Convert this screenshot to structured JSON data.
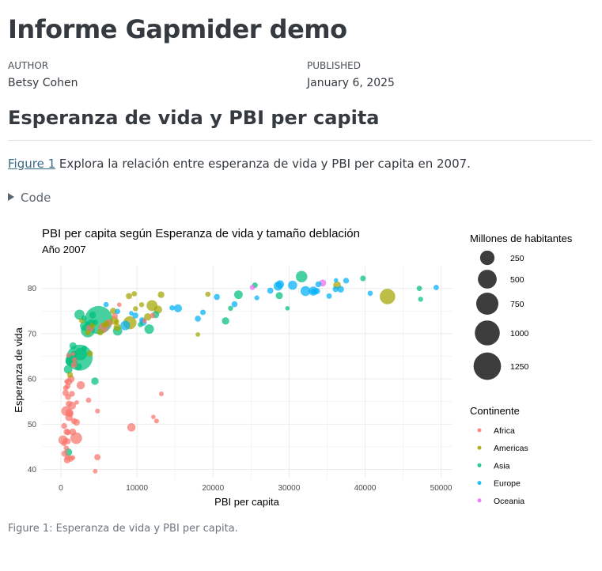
{
  "page": {
    "title": "Informe Gapmider demo",
    "author_label": "AUTHOR",
    "author": "Betsy Cohen",
    "published_label": "PUBLISHED",
    "published": "January 6, 2025",
    "section_title": "Esperanza de vida y PBI per capita",
    "para_link": "Figure 1",
    "para_text": " Explora la relación entre esperanza de vida y PBI per capita en 2007.",
    "code_label": "Code",
    "caption": "Figure 1: Esperanza de vida y PBI per capita."
  },
  "colors": {
    "Africa": "#f8766d",
    "Americas": "#a3a500",
    "Asia": "#00bf7d",
    "Europe": "#00b0f6",
    "Oceania": "#e76bf3",
    "size_legend": "#3d3d3d",
    "grid": "#ebebeb"
  },
  "chart_data": {
    "type": "scatter",
    "title": "PBI per capita según Esperanza de vida y tamaño deblación",
    "subtitle": "Año 2007",
    "xlabel": "PBI per capita",
    "ylabel": "Esperanza de vida",
    "xlim": [
      -2500,
      51500
    ],
    "ylim": [
      38,
      85
    ],
    "xticks": [
      0,
      10000,
      20000,
      30000,
      40000,
      50000
    ],
    "yticks": [
      40,
      50,
      60,
      70,
      80
    ],
    "grid": true,
    "size_legend": {
      "title": "Millones de habitantes",
      "values": [
        250,
        500,
        750,
        1000,
        1250
      ]
    },
    "color_legend": {
      "title": "Continente",
      "items": [
        "Africa",
        "Americas",
        "Asia",
        "Europe",
        "Oceania"
      ]
    },
    "series": [
      {
        "name": "Africa",
        "points": [
          [
            6223,
            72.3,
            33
          ],
          [
            4797,
            42.7,
            12
          ],
          [
            1441,
            56.7,
            8
          ],
          [
            12570,
            50.7,
            2
          ],
          [
            1217,
            52.3,
            14
          ],
          [
            430,
            49.6,
            8
          ],
          [
            2042,
            50.4,
            18
          ],
          [
            706,
            44.7,
            4
          ],
          [
            1704,
            50.7,
            10
          ],
          [
            986,
            65.2,
            1
          ],
          [
            278,
            46.5,
            65
          ],
          [
            3633,
            55.3,
            4
          ],
          [
            1545,
            48.3,
            18
          ],
          [
            2082,
            54.8,
            0.5
          ],
          [
            5581,
            71.3,
            80
          ],
          [
            12154,
            51.6,
            0.6
          ],
          [
            641,
            58.0,
            5
          ],
          [
            691,
            52.9,
            76
          ],
          [
            13206,
            56.7,
            1.5
          ],
          [
            753,
            59.4,
            1.7
          ],
          [
            1327,
            60.0,
            23
          ],
          [
            943,
            56.0,
            10
          ],
          [
            579,
            46.4,
            1.5
          ],
          [
            1463,
            54.1,
            35
          ],
          [
            1569,
            42.6,
            2
          ],
          [
            415,
            45.7,
            3.2
          ],
          [
            12057,
            74.0,
            6
          ],
          [
            1045,
            59.4,
            19
          ],
          [
            759,
            48.3,
            13
          ],
          [
            1043,
            54.5,
            12
          ],
          [
            1803,
            64.2,
            3.3
          ],
          [
            10957,
            72.8,
            1.3
          ],
          [
            3820,
            71.2,
            34
          ],
          [
            824,
            42.1,
            20
          ],
          [
            4811,
            52.9,
            2
          ],
          [
            620,
            56.9,
            12
          ],
          [
            2014,
            46.9,
            135
          ],
          [
            7670,
            76.4,
            0.8
          ],
          [
            882,
            46.2,
            9
          ],
          [
            1598,
            65.5,
            0.2
          ],
          [
            1712,
            63.1,
            12
          ],
          [
            862,
            42.6,
            6
          ],
          [
            926,
            48.2,
            9
          ],
          [
            9270,
            49.3,
            44
          ],
          [
            2602,
            58.6,
            42
          ],
          [
            4513,
            39.6,
            1.1
          ],
          [
            1107,
            52.5,
            38
          ],
          [
            883,
            58.4,
            6
          ],
          [
            7093,
            73.9,
            10
          ],
          [
            1056,
            51.5,
            29
          ],
          [
            1271,
            42.4,
            11
          ],
          [
            470,
            43.5,
            12
          ]
        ]
      },
      {
        "name": "Americas",
        "points": [
          [
            12779,
            75.3,
            40
          ],
          [
            3822,
            65.6,
            9
          ],
          [
            9066,
            72.4,
            190
          ],
          [
            36319,
            80.7,
            33
          ],
          [
            13172,
            78.6,
            16
          ],
          [
            7007,
            72.9,
            44
          ],
          [
            9645,
            78.8,
            4
          ],
          [
            8948,
            78.3,
            11
          ],
          [
            6025,
            72.2,
            9
          ],
          [
            6873,
            75.0,
            14
          ],
          [
            5728,
            71.9,
            7
          ],
          [
            5186,
            70.3,
            13
          ],
          [
            1202,
            60.9,
            8
          ],
          [
            3548,
            70.2,
            7
          ],
          [
            7321,
            72.6,
            3
          ],
          [
            11978,
            76.2,
            108
          ],
          [
            2749,
            72.9,
            6
          ],
          [
            9809,
            75.5,
            3
          ],
          [
            4173,
            71.8,
            6
          ],
          [
            7409,
            71.4,
            28
          ],
          [
            19329,
            78.7,
            4
          ],
          [
            18009,
            69.8,
            1
          ],
          [
            42952,
            78.2,
            301
          ],
          [
            10611,
            76.4,
            3
          ],
          [
            11416,
            73.7,
            26
          ]
        ]
      },
      {
        "name": "Asia",
        "points": [
          [
            975,
            43.8,
            32
          ],
          [
            29796,
            75.6,
            0.7
          ],
          [
            1391,
            64.1,
            150
          ],
          [
            1714,
            65.5,
            14
          ],
          [
            4959,
            73.0,
            1319
          ],
          [
            39725,
            82.2,
            7
          ],
          [
            2452,
            64.7,
            1110
          ],
          [
            3541,
            70.7,
            224
          ],
          [
            11606,
            71.0,
            69
          ],
          [
            4471,
            59.5,
            28
          ],
          [
            25523,
            80.7,
            6
          ],
          [
            31656,
            82.6,
            127
          ],
          [
            4519,
            72.5,
            6
          ],
          [
            1593,
            67.3,
            23
          ],
          [
            23348,
            78.6,
            49
          ],
          [
            47307,
            77.6,
            2.5
          ],
          [
            10461,
            72.0,
            4
          ],
          [
            12452,
            74.2,
            24
          ],
          [
            3096,
            66.8,
            3
          ],
          [
            944,
            62.1,
            48
          ],
          [
            1091,
            63.8,
            29
          ],
          [
            22316,
            75.6,
            3
          ],
          [
            2606,
            65.5,
            169
          ],
          [
            3190,
            71.7,
            91
          ],
          [
            21655,
            72.8,
            27
          ],
          [
            47143,
            80.0,
            4.5
          ],
          [
            3970,
            72.4,
            20
          ],
          [
            4185,
            74.1,
            20
          ],
          [
            28718,
            78.4,
            23
          ],
          [
            7458,
            70.6,
            66
          ],
          [
            2442,
            74.2,
            85
          ],
          [
            3025,
            73.4,
            4
          ],
          [
            2281,
            62.7,
            22
          ]
        ]
      },
      {
        "name": "Europe",
        "points": [
          [
            5937,
            76.4,
            3.6
          ],
          [
            36126,
            79.8,
            8
          ],
          [
            33693,
            79.4,
            10
          ],
          [
            7446,
            74.9,
            4.5
          ],
          [
            10681,
            73.0,
            7
          ],
          [
            14619,
            75.7,
            4.5
          ],
          [
            22833,
            76.5,
            10
          ],
          [
            35278,
            78.3,
            5.5
          ],
          [
            33207,
            79.3,
            5.2
          ],
          [
            30470,
            80.7,
            61
          ],
          [
            32170,
            79.4,
            82
          ],
          [
            27538,
            79.5,
            11
          ],
          [
            18008,
            73.3,
            10
          ],
          [
            36181,
            81.8,
            0.3
          ],
          [
            40676,
            78.9,
            4.1
          ],
          [
            28570,
            80.5,
            58
          ],
          [
            9254,
            74.5,
            0.7
          ],
          [
            36798,
            79.8,
            16
          ],
          [
            49357,
            80.2,
            4.6
          ],
          [
            15390,
            75.6,
            38
          ],
          [
            20510,
            78.1,
            10
          ],
          [
            10808,
            72.5,
            22
          ],
          [
            9787,
            74.0,
            10
          ],
          [
            18678,
            74.7,
            5.4
          ],
          [
            25768,
            77.9,
            2
          ],
          [
            28821,
            80.9,
            40
          ],
          [
            33860,
            80.9,
            9
          ],
          [
            37506,
            81.7,
            7.5
          ],
          [
            8458,
            71.8,
            71
          ],
          [
            33203,
            79.4,
            61
          ]
        ]
      },
      {
        "name": "Oceania",
        "points": [
          [
            34435,
            81.2,
            20
          ],
          [
            25185,
            80.2,
            4
          ]
        ]
      }
    ]
  }
}
